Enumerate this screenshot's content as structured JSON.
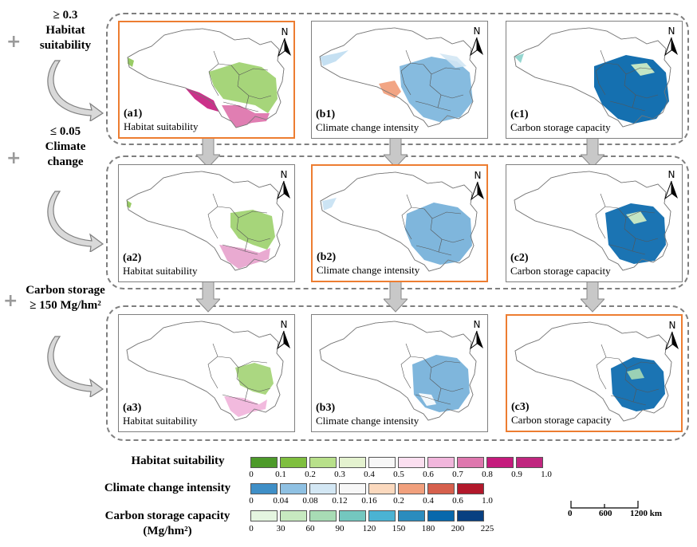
{
  "filters": {
    "f1": {
      "sign": "+",
      "lines": [
        "≥ 0.3",
        "Habitat",
        "suitability"
      ]
    },
    "f2": {
      "sign": "+",
      "lines": [
        "≤ 0.05",
        "Climate",
        "change"
      ]
    },
    "f3": {
      "sign": "+",
      "lines": [
        "Carbon storage",
        "≥ 150 Mg/hm²"
      ]
    }
  },
  "panels": [
    {
      "id": "(a1)",
      "name": "Habitat suitability",
      "type": "habitat",
      "step": 1,
      "highlight": true
    },
    {
      "id": "(b1)",
      "name": "Climate change intensity",
      "type": "climate",
      "step": 1,
      "highlight": false
    },
    {
      "id": "(c1)",
      "name": "Carbon storage capacity",
      "type": "carbon",
      "step": 1,
      "highlight": false
    },
    {
      "id": "(a2)",
      "name": "Habitat suitability",
      "type": "habitat",
      "step": 2,
      "highlight": false
    },
    {
      "id": "(b2)",
      "name": "Climate change intensity",
      "type": "climate",
      "step": 2,
      "highlight": true
    },
    {
      "id": "(c2)",
      "name": "Carbon storage capacity",
      "type": "carbon",
      "step": 2,
      "highlight": false
    },
    {
      "id": "(a3)",
      "name": "Habitat suitability",
      "type": "habitat",
      "step": 3,
      "highlight": false
    },
    {
      "id": "(b3)",
      "name": "Climate change intensity",
      "type": "climate",
      "step": 3,
      "highlight": false
    },
    {
      "id": "(c3)",
      "name": "Carbon storage capacity",
      "type": "carbon",
      "step": 3,
      "highlight": true
    }
  ],
  "north_label": "N",
  "legend": {
    "habitat": {
      "title": "Habitat suitability",
      "colors": [
        "#4d9a2a",
        "#7fbf3f",
        "#b8e08a",
        "#e4f2cf",
        "#f7f7f7",
        "#fbdff0",
        "#f1b6dc",
        "#de77ae",
        "#c51b7d",
        "#c0267f"
      ],
      "ticks": [
        "0",
        "0.1",
        "0.2",
        "0.3",
        "0.4",
        "0.5",
        "0.6",
        "0.7",
        "0.8",
        "0.9",
        "1.0"
      ]
    },
    "climate": {
      "title": "Climate change intensity",
      "colors": [
        "#3f8fc7",
        "#8fc1e3",
        "#d3e7f4",
        "#f7f7f7",
        "#fbd9be",
        "#f1a07d",
        "#d6604d",
        "#b2182b"
      ],
      "ticks": [
        "0",
        "0.04",
        "0.08",
        "0.12",
        "0.16",
        "0.2",
        "0.4",
        "0.6",
        "1.0"
      ]
    },
    "carbon": {
      "title_line1": "Carbon storage capacity",
      "title_line2": "(Mg/hm²)",
      "colors": [
        "#e5f5e0",
        "#c7e9c0",
        "#a8dcb5",
        "#74c7bf",
        "#4bb3d3",
        "#2b8cbe",
        "#0868ac",
        "#084081"
      ],
      "ticks": [
        "0",
        "30",
        "60",
        "90",
        "120",
        "150",
        "180",
        "200",
        "225"
      ]
    }
  },
  "scale_bar": {
    "ticks": [
      "0",
      "600",
      "1200 km"
    ]
  }
}
